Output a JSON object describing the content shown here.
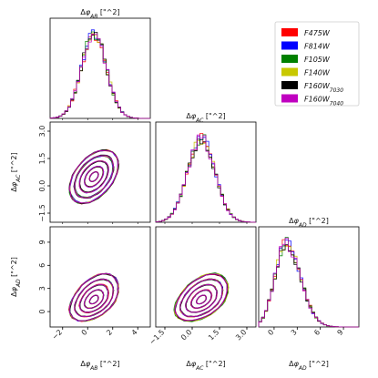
{
  "chart_data": {
    "type": "corner",
    "params": [
      {
        "key": "AB",
        "title": "Δφ_AB [\"^2]",
        "xlabel": "Δφ_AB [\"^2]",
        "ylabel": "",
        "range": [
          -3,
          5
        ],
        "ticks": [
          -2,
          0,
          2,
          4
        ],
        "mean": 0.5,
        "sd": 1.0
      },
      {
        "key": "AC",
        "title": "Δφ_AC [\"^2]",
        "xlabel": "Δφ_AC [\"^2]",
        "ylabel": "Δφ_AC [\"^2]",
        "range": [
          -2,
          3.5
        ],
        "ticks": [
          -1.5,
          0.0,
          1.5,
          3.0
        ],
        "mean": 0.5,
        "sd": 0.75
      },
      {
        "key": "AD",
        "title": "Δφ_AD [\"^2]",
        "xlabel": "Δφ_AD [\"^2]",
        "ylabel": "Δφ_AD [\"^2]",
        "range": [
          -2,
          11
        ],
        "ticks": [
          0,
          3,
          6,
          9
        ],
        "mean": 1.5,
        "sd": 1.4
      }
    ],
    "series": [
      {
        "name": "F475W",
        "color": "#ff0000"
      },
      {
        "name": "F814W",
        "color": "#0000ff"
      },
      {
        "name": "F105W",
        "color": "#008000"
      },
      {
        "name": "F140W",
        "color": "#c8c800"
      },
      {
        "name": "F160W",
        "subscript": "7030",
        "color": "#000000"
      },
      {
        "name": "F160W",
        "subscript": "7040",
        "color": "#c000c0"
      }
    ],
    "legend_position": "top-right",
    "grid": false
  }
}
